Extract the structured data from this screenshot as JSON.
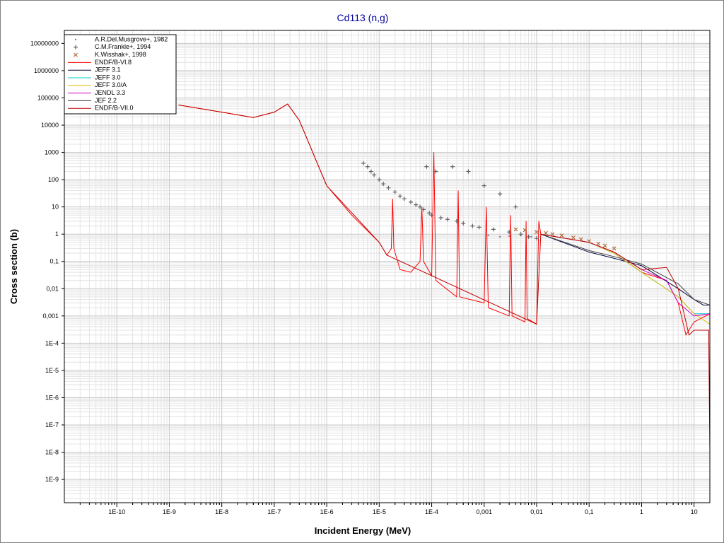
{
  "chart_data": {
    "type": "line",
    "title": "Cd113 (n,g)",
    "x_label": "Incident Energy (MeV)",
    "y_label": "Cross section (b)",
    "log_x": true,
    "log_y": true,
    "grid": true,
    "minor_grid": true,
    "legend": "upper left",
    "xlim": [
      1e-11,
      20
    ],
    "ylim": [
      1.4e-10,
      30000000
    ],
    "xticks": [
      {
        "value": 1e-10,
        "label": "1E-10"
      },
      {
        "value": 1e-09,
        "label": "1E-9"
      },
      {
        "value": 1e-08,
        "label": "1E-8"
      },
      {
        "value": 1e-07,
        "label": "1E-7"
      },
      {
        "value": 1e-06,
        "label": "1E-6"
      },
      {
        "value": 1e-05,
        "label": "1E-5"
      },
      {
        "value": 0.0001,
        "label": "1E-4"
      },
      {
        "value": 0.001,
        "label": "0,001"
      },
      {
        "value": 0.01,
        "label": "0,01"
      },
      {
        "value": 0.1,
        "label": "0,1"
      },
      1,
      10
    ],
    "yticks": [
      10000000,
      1000000,
      100000,
      10000,
      1000,
      100,
      10,
      1,
      {
        "value": 0.1,
        "label": "0,1"
      },
      {
        "value": 0.01,
        "label": "0,01"
      },
      {
        "value": 0.001,
        "label": "0,001"
      },
      {
        "value": 0.0001,
        "label": "1E-4"
      },
      {
        "value": 1e-05,
        "label": "1E-5"
      },
      {
        "value": 1e-06,
        "label": "1E-6"
      },
      {
        "value": 1e-07,
        "label": "1E-7"
      },
      {
        "value": 1e-08,
        "label": "1E-8"
      },
      {
        "value": 1e-09,
        "label": "1E-9"
      }
    ],
    "series": [
      {
        "name": "A.R.Del.Musgrove+, 1982",
        "marker": "dot",
        "color": "#808080",
        "x": [
          0.0012,
          0.002,
          0.003,
          0.005,
          0.008
        ],
        "values": [
          0.9,
          0.8,
          0.85,
          0.9,
          0.8
        ]
      },
      {
        "name": "C.M.Frankle+, 1994",
        "marker": "plus",
        "color": "#606060",
        "x": [
          5e-06,
          6e-06,
          7e-06,
          8e-06,
          1e-05,
          1.2e-05,
          1.5e-05,
          2e-05,
          2.5e-05,
          3e-05,
          4e-05,
          5e-05,
          6e-05,
          7e-05,
          8e-05,
          9e-05,
          0.0001,
          0.00012,
          0.00015,
          0.0002,
          0.00025,
          0.0003,
          0.0004,
          0.0005,
          0.0006,
          0.0008,
          0.001,
          0.0015,
          0.002,
          0.003,
          0.004,
          0.005,
          0.007,
          0.01
        ],
        "values": [
          400,
          300,
          200,
          150,
          100,
          70,
          50,
          35,
          25,
          20,
          15,
          12,
          10,
          8,
          300,
          6,
          5,
          200,
          4,
          3.5,
          300,
          3,
          2.5,
          200,
          2,
          1.8,
          60,
          1.5,
          30,
          1.2,
          10,
          1,
          0.8,
          0.7
        ]
      },
      {
        "name": "K.Wisshak+, 1998",
        "marker": "cross",
        "color": "#b07040",
        "x": [
          0.004,
          0.006,
          0.01,
          0.015,
          0.02,
          0.03,
          0.05,
          0.07,
          0.1,
          0.15,
          0.2,
          0.3
        ],
        "values": [
          1.5,
          1.4,
          1.2,
          1.1,
          1.0,
          0.9,
          0.75,
          0.65,
          0.55,
          0.45,
          0.38,
          0.3
        ]
      },
      {
        "name": "ENDF/B-VI.8",
        "color": "#ff0000",
        "x": [
          1.5e-09,
          1e-08,
          4e-08,
          1e-07,
          1.8e-07,
          3e-07,
          1e-06,
          3e-06,
          1e-05,
          1.4e-05,
          1.7e-05,
          1.8e-05,
          1.9e-05,
          2.5e-05,
          4e-05,
          6e-05,
          6.5e-05,
          7e-05,
          0.0001,
          0.00011,
          0.00012,
          0.0003,
          0.00032,
          0.00034,
          0.001,
          0.0011,
          0.0012,
          0.003,
          0.0032,
          0.0034,
          0.006,
          0.0063,
          0.0066,
          0.01,
          0.011,
          0.012,
          0.1,
          0.3,
          1,
          3,
          5,
          7,
          10,
          20
        ],
        "values": [
          55000,
          30000,
          19000,
          30000,
          60000,
          15000,
          60,
          5,
          0.5,
          0.17,
          0.3,
          20,
          0.3,
          0.05,
          0.04,
          0.1,
          10,
          0.1,
          0.03,
          1000,
          0.02,
          0.005,
          40,
          0.005,
          0.003,
          10,
          0.002,
          0.001,
          5,
          0.001,
          0.0006,
          3,
          0.0008,
          0.0005,
          3,
          1.0,
          0.5,
          0.2,
          0.04,
          0.02,
          0.003,
          0.0002,
          0.0006,
          0.0012
        ]
      },
      {
        "name": "JEFF 3.1",
        "color": "#000040",
        "x": [
          0.012,
          0.1,
          0.3,
          1,
          5,
          10,
          15,
          20
        ],
        "values": [
          1,
          0.22,
          0.13,
          0.07,
          0.01,
          0.004,
          0.0025,
          0.0025
        ]
      },
      {
        "name": "JEFF 3.0",
        "color": "#00cccc",
        "x": [
          0.012,
          0.1,
          0.3,
          1,
          5,
          10,
          20
        ],
        "values": [
          1,
          0.5,
          0.2,
          0.04,
          0.005,
          0.0012,
          0.0012
        ]
      },
      {
        "name": "JEFF 3.0/A",
        "color": "#e0c000",
        "x": [
          0.012,
          0.1,
          0.3,
          1,
          5,
          10,
          20
        ],
        "values": [
          1,
          0.5,
          0.2,
          0.04,
          0.005,
          0.0012,
          0.0005
        ]
      },
      {
        "name": "JENDL 3.3",
        "color": "#cc00cc",
        "x": [
          0.012,
          0.1,
          0.3,
          1,
          3,
          5,
          10,
          20
        ],
        "values": [
          1,
          0.5,
          0.22,
          0.05,
          0.02,
          0.003,
          0.001,
          0.0012
        ]
      },
      {
        "name": "JEF 2.2",
        "color": "#404040",
        "x": [
          0.012,
          0.1,
          0.3,
          1,
          5,
          10,
          20
        ],
        "values": [
          1,
          0.25,
          0.15,
          0.08,
          0.015,
          0.004,
          0.0025
        ]
      },
      {
        "name": "ENDF/B-VII.0",
        "color": "#c00000",
        "x": [
          1.5e-09,
          1e-08,
          4e-08,
          1e-07,
          1.8e-07,
          3e-07,
          1e-06,
          1e-05,
          1.4e-05,
          0.0001,
          0.01,
          0.012,
          0.1,
          0.3,
          1,
          3,
          5,
          8,
          10,
          19,
          20
        ],
        "values": [
          55000,
          30000,
          19000,
          30000,
          60000,
          15000,
          60,
          0.5,
          0.17,
          0.03,
          0.0005,
          1.0,
          0.5,
          0.22,
          0.05,
          0.06,
          0.01,
          0.0002,
          0.0003,
          0.0003,
          1e-08
        ]
      }
    ]
  }
}
